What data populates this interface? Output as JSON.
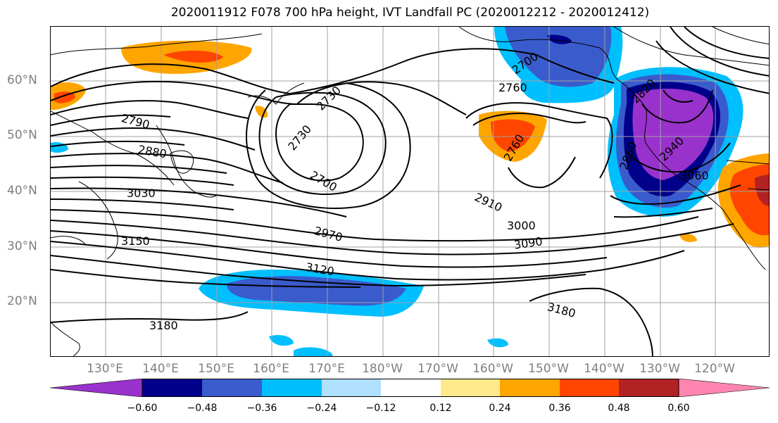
{
  "title": "2020011912 F078 700 hPa height, IVT Landfall PC (2020012212 - 2020012412)",
  "lat_labels": [
    "60°N",
    "50°N",
    "40°N",
    "30°N",
    "20°N"
  ],
  "lon_labels": [
    "130°E",
    "140°E",
    "150°E",
    "160°E",
    "170°E",
    "180°W",
    "170°W",
    "160°W",
    "150°W",
    "140°W",
    "130°W",
    "120°W"
  ],
  "contour_labels": [
    "2700",
    "2760",
    "2730",
    "2730",
    "2790",
    "2880",
    "3030",
    "3150",
    "3180",
    "2700",
    "2760",
    "2910",
    "3000",
    "2970",
    "3090",
    "3120",
    "3180",
    "2820",
    "2850",
    "2940",
    "3060"
  ],
  "colorbar": {
    "ticks": [
      "−0.60",
      "−0.48",
      "−0.36",
      "−0.24",
      "−0.12",
      "0.12",
      "0.24",
      "0.36",
      "0.48",
      "0.60"
    ],
    "colors": [
      "#9932cc",
      "#00008b",
      "#3a5bcc",
      "#00bfff",
      "#b0e0ff",
      "#ffffff",
      "#ffe98a",
      "#ffa500",
      "#ff4500",
      "#b22222",
      "#ff85b0"
    ]
  }
}
